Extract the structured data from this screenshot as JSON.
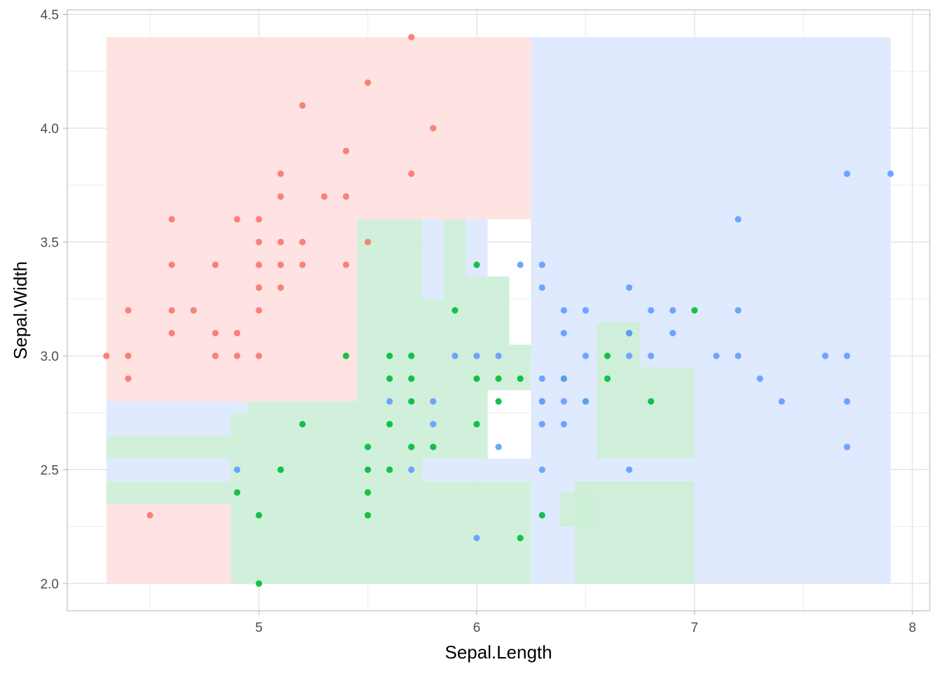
{
  "chart_data": {
    "type": "scatter",
    "title": "",
    "xlabel": "Sepal.Length",
    "ylabel": "Sepal.Width",
    "xlim": [
      4.12,
      8.08
    ],
    "ylim": [
      1.88,
      4.52
    ],
    "x_ticks": [
      5,
      6,
      7,
      8
    ],
    "x_tick_labels": [
      "5",
      "6",
      "7",
      "8"
    ],
    "y_ticks": [
      2.0,
      2.5,
      3.0,
      3.5,
      4.0,
      4.5
    ],
    "y_tick_labels": [
      "2.0",
      "2.5",
      "3.0",
      "3.5",
      "4.0",
      "4.5"
    ],
    "grid": true,
    "legend": "none",
    "classes": [
      {
        "id": "a",
        "point_color": "#F8766D",
        "region_color": "#FEE1E0"
      },
      {
        "id": "b",
        "point_color": "#00BA38",
        "region_color": "#CDEFD8"
      },
      {
        "id": "c",
        "point_color": "#619CFF",
        "region_color": "#DDE8FE"
      }
    ],
    "regions": [
      {
        "class": "a",
        "x": [
          4.3,
          6.25
        ],
        "y": [
          3.6,
          4.4
        ]
      },
      {
        "class": "a",
        "x": [
          4.3,
          5.45
        ],
        "y": [
          2.8,
          3.6
        ]
      },
      {
        "class": "a",
        "x": [
          4.3,
          4.87
        ],
        "y": [
          2.0,
          2.35
        ]
      },
      {
        "class": "b",
        "x": [
          4.3,
          4.87
        ],
        "y": [
          2.35,
          2.45
        ]
      },
      {
        "class": "b",
        "x": [
          4.3,
          4.87
        ],
        "y": [
          2.55,
          2.65
        ]
      },
      {
        "class": "c",
        "x": [
          4.3,
          4.87
        ],
        "y": [
          2.45,
          2.55
        ]
      },
      {
        "class": "c",
        "x": [
          4.3,
          4.87
        ],
        "y": [
          2.65,
          2.8
        ]
      },
      {
        "class": "c",
        "x": [
          4.87,
          4.95
        ],
        "y": [
          2.75,
          2.8
        ]
      },
      {
        "class": "b",
        "x": [
          4.87,
          4.95
        ],
        "y": [
          2.0,
          2.75
        ]
      },
      {
        "class": "b",
        "x": [
          4.95,
          5.45
        ],
        "y": [
          2.0,
          2.8
        ]
      },
      {
        "class": "b",
        "x": [
          5.45,
          5.75
        ],
        "y": [
          2.0,
          3.6
        ]
      },
      {
        "class": "b",
        "x": [
          5.75,
          5.95
        ],
        "y": [
          2.55,
          3.25
        ]
      },
      {
        "class": "c",
        "x": [
          5.75,
          5.85
        ],
        "y": [
          3.25,
          3.6
        ]
      },
      {
        "class": "b",
        "x": [
          5.85,
          5.95
        ],
        "y": [
          3.25,
          3.6
        ]
      },
      {
        "class": "c",
        "x": [
          5.95,
          6.05
        ],
        "y": [
          3.35,
          3.6
        ]
      },
      {
        "class": "b",
        "x": [
          5.95,
          6.15
        ],
        "y": [
          3.05,
          3.35
        ]
      },
      {
        "class": "b",
        "x": [
          5.95,
          6.25
        ],
        "y": [
          2.95,
          3.05
        ]
      },
      {
        "class": "b",
        "x": [
          5.95,
          6.25
        ],
        "y": [
          2.85,
          2.95
        ]
      },
      {
        "class": "b",
        "x": [
          5.95,
          6.05
        ],
        "y": [
          2.55,
          2.85
        ]
      },
      {
        "class": "c",
        "x": [
          5.75,
          6.25
        ],
        "y": [
          2.45,
          2.55
        ]
      },
      {
        "class": "b",
        "x": [
          5.75,
          6.25
        ],
        "y": [
          2.0,
          2.45
        ]
      },
      {
        "class": "c",
        "x": [
          6.25,
          7.9
        ],
        "y": [
          2.0,
          4.4
        ]
      },
      {
        "class": "b",
        "x": [
          6.38,
          6.55
        ],
        "y": [
          2.25,
          2.4
        ]
      },
      {
        "class": "b",
        "x": [
          6.45,
          7.0
        ],
        "y": [
          2.0,
          2.45
        ]
      },
      {
        "class": "b",
        "x": [
          6.55,
          7.0
        ],
        "y": [
          2.55,
          2.95
        ]
      },
      {
        "class": "b",
        "x": [
          6.55,
          6.75
        ],
        "y": [
          2.95,
          3.15
        ]
      }
    ],
    "series": [
      {
        "class": "a",
        "x": [
          4.3,
          4.4,
          4.4,
          4.4,
          4.5,
          4.6,
          4.6,
          4.6,
          4.6,
          4.7,
          4.8,
          4.8,
          4.8,
          4.9,
          4.9,
          4.9,
          5.0,
          5.0,
          5.0,
          5.0,
          5.0,
          5.0,
          5.1,
          5.1,
          5.1,
          5.1,
          5.1,
          5.2,
          5.2,
          5.2,
          5.3,
          5.4,
          5.4,
          5.4,
          5.5,
          5.5,
          5.7,
          5.7,
          5.8
        ],
        "y": [
          3.0,
          2.9,
          3.0,
          3.2,
          2.3,
          3.1,
          3.2,
          3.4,
          3.6,
          3.2,
          3.0,
          3.1,
          3.4,
          3.0,
          3.1,
          3.6,
          3.0,
          3.2,
          3.3,
          3.4,
          3.5,
          3.6,
          3.3,
          3.4,
          3.5,
          3.7,
          3.8,
          3.4,
          3.5,
          4.1,
          3.7,
          3.4,
          3.7,
          3.9,
          3.5,
          4.2,
          3.8,
          4.4,
          4.0
        ]
      },
      {
        "class": "b",
        "x": [
          4.9,
          5.0,
          5.0,
          5.1,
          5.2,
          5.4,
          5.5,
          5.5,
          5.5,
          5.5,
          5.6,
          5.6,
          5.6,
          5.6,
          5.7,
          5.7,
          5.7,
          5.7,
          5.8,
          5.9,
          6.0,
          6.0,
          6.0,
          6.1,
          6.1,
          6.2,
          6.2,
          6.3,
          6.4,
          6.5,
          6.6,
          6.6,
          6.7,
          6.8,
          7.0
        ],
        "y": [
          2.4,
          2.0,
          2.3,
          2.5,
          2.7,
          3.0,
          2.3,
          2.4,
          2.5,
          2.6,
          2.5,
          2.7,
          2.9,
          3.0,
          2.6,
          2.8,
          2.9,
          3.0,
          2.6,
          3.2,
          2.7,
          2.9,
          3.4,
          2.8,
          2.9,
          2.2,
          2.9,
          2.3,
          2.9,
          2.8,
          2.9,
          3.0,
          3.1,
          2.8,
          3.2
        ]
      },
      {
        "class": "c",
        "x": [
          4.9,
          5.6,
          5.7,
          5.8,
          5.8,
          5.9,
          6.0,
          6.0,
          6.1,
          6.1,
          6.2,
          6.3,
          6.3,
          6.3,
          6.3,
          6.3,
          6.3,
          6.3,
          6.4,
          6.4,
          6.4,
          6.4,
          6.4,
          6.5,
          6.5,
          6.5,
          6.7,
          6.7,
          6.7,
          6.7,
          6.8,
          6.8,
          6.9,
          6.9,
          7.1,
          7.2,
          7.2,
          7.2,
          7.3,
          7.4,
          7.6,
          7.7,
          7.7,
          7.7,
          7.7,
          7.9
        ],
        "y": [
          2.5,
          2.8,
          2.5,
          2.7,
          2.8,
          3.0,
          2.2,
          3.0,
          2.6,
          3.0,
          3.4,
          2.5,
          2.7,
          2.8,
          2.9,
          3.3,
          3.4,
          2.8,
          2.7,
          2.8,
          2.9,
          3.1,
          3.2,
          2.8,
          3.0,
          3.2,
          2.5,
          3.0,
          3.1,
          3.3,
          3.0,
          3.2,
          3.1,
          3.2,
          3.0,
          3.0,
          3.2,
          3.6,
          2.9,
          2.8,
          3.0,
          2.6,
          2.8,
          3.0,
          3.8,
          3.8
        ]
      }
    ]
  }
}
